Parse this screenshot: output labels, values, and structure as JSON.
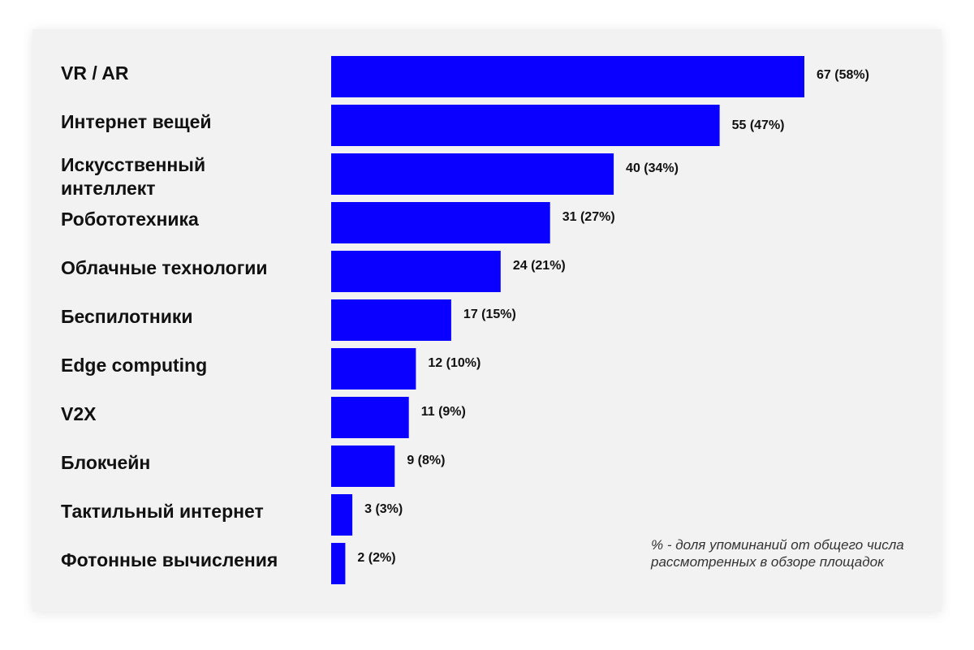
{
  "chart_data": {
    "type": "bar",
    "orientation": "horizontal",
    "categories": [
      "VR / AR",
      "Интернет вещей",
      "Искусственный интеллект",
      "Робототехника",
      "Облачные технологии",
      "Беспилотники",
      "Edge computing",
      "V2X",
      "Блокчейн",
      "Тактильный интернет",
      "Фотонные вычисления"
    ],
    "category_lines": [
      [
        "VR / AR"
      ],
      [
        "Интернет вещей"
      ],
      [
        "Искусственный",
        "интеллект"
      ],
      [
        "Робототехника"
      ],
      [
        "Облачные технологии"
      ],
      [
        "Беспилотники"
      ],
      [
        "Edge computing"
      ],
      [
        "V2X"
      ],
      [
        "Блокчейн"
      ],
      [
        "Тактильный интернет"
      ],
      [
        "Фотонные вычисления"
      ]
    ],
    "values": [
      67,
      55,
      40,
      31,
      24,
      17,
      12,
      11,
      9,
      3,
      2
    ],
    "percent": [
      58,
      47,
      34,
      27,
      21,
      15,
      10,
      9,
      8,
      3,
      2
    ],
    "value_labels": [
      "67 (58%)",
      "55 (47%)",
      "40 (34%)",
      "31 (27%)",
      "24 (21%)",
      "17 (15%)",
      "12 (10%)",
      "11 (9%)",
      "9 (8%)",
      "3 (3%)",
      "2 (2%)"
    ],
    "bar_color": "#0a00ff",
    "xlim": [
      0,
      67
    ],
    "grid": false,
    "legend": "none"
  },
  "note": "% - доля упоминаний от общего числа рассмотренных в обзоре площадок"
}
